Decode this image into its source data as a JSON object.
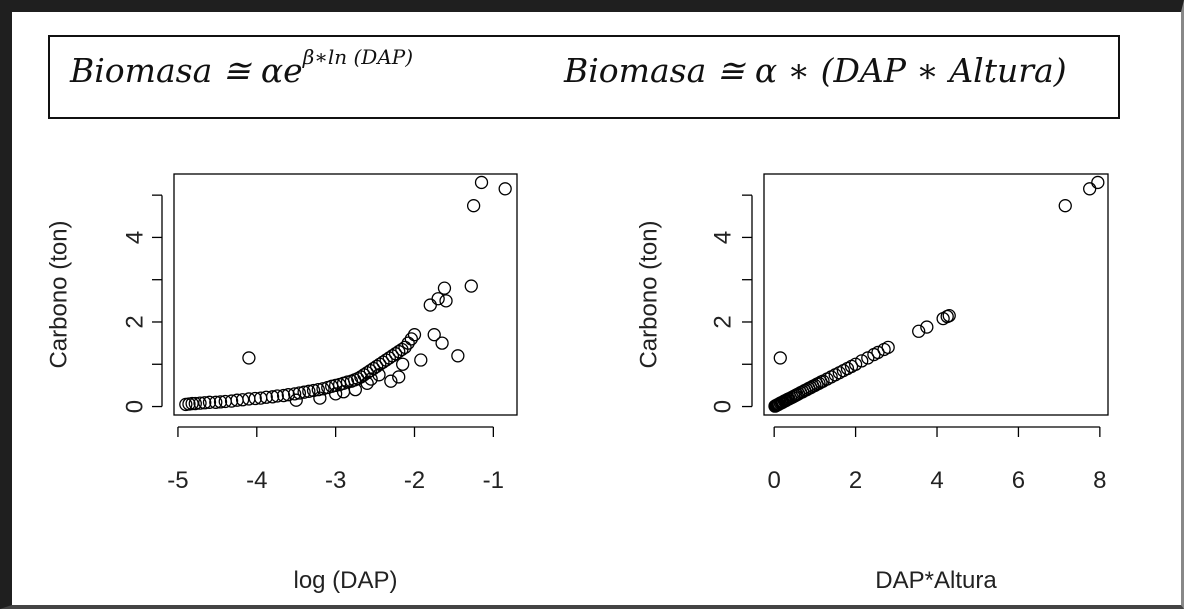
{
  "formulas": {
    "left": {
      "lhs": "Biomasa ≅ αe",
      "exponent": "β∗ln (DAP)"
    },
    "right": "Biomasa ≅ α ∗ (DAP ∗ Altura)"
  },
  "chart_data": [
    {
      "type": "scatter",
      "xlabel": "log (DAP)",
      "ylabel": "Carbono (ton)",
      "xlim": [
        -5.05,
        -0.7
      ],
      "ylim": [
        -0.2,
        5.5
      ],
      "xticks": [
        -5,
        -4,
        -3,
        -2,
        -1
      ],
      "xtick_labels": [
        "-5",
        "-4",
        "-3",
        "-2",
        "-1"
      ],
      "yticks": [
        0,
        2,
        4
      ],
      "ytick_labels": [
        "0",
        "2",
        "4"
      ],
      "grid": false,
      "x": [
        -4.9,
        -4.86,
        -4.82,
        -4.78,
        -4.72,
        -4.66,
        -4.6,
        -4.52,
        -4.46,
        -4.4,
        -4.32,
        -4.25,
        -4.18,
        -4.1,
        -4.02,
        -3.95,
        -3.88,
        -3.8,
        -3.74,
        -3.66,
        -3.6,
        -3.52,
        -3.46,
        -3.4,
        -3.34,
        -3.28,
        -3.22,
        -3.16,
        -3.1,
        -3.05,
        -3.0,
        -2.95,
        -2.9,
        -2.85,
        -2.8,
        -2.76,
        -2.72,
        -2.68,
        -2.64,
        -2.6,
        -2.56,
        -2.52,
        -2.48,
        -2.44,
        -2.4,
        -2.36,
        -2.32,
        -2.28,
        -2.24,
        -2.2,
        -2.16,
        -2.12,
        -2.08,
        -2.04,
        -2.0,
        -3.5,
        -3.2,
        -3.0,
        -2.9,
        -2.75,
        -2.6,
        -2.55,
        -2.45,
        -2.3,
        -2.2,
        -2.15,
        -4.1,
        -1.92,
        -1.8,
        -1.75,
        -1.7,
        -1.65,
        -1.62,
        -1.6,
        -1.45,
        -1.28,
        -1.25,
        -1.15,
        -0.85
      ],
      "y": [
        0.05,
        0.06,
        0.07,
        0.07,
        0.08,
        0.09,
        0.1,
        0.1,
        0.11,
        0.12,
        0.13,
        0.15,
        0.16,
        0.18,
        0.19,
        0.2,
        0.22,
        0.23,
        0.25,
        0.26,
        0.28,
        0.3,
        0.32,
        0.34,
        0.36,
        0.38,
        0.4,
        0.42,
        0.45,
        0.48,
        0.5,
        0.52,
        0.55,
        0.58,
        0.6,
        0.63,
        0.66,
        0.7,
        0.75,
        0.8,
        0.85,
        0.9,
        0.95,
        1.0,
        1.05,
        1.1,
        1.15,
        1.2,
        1.25,
        1.3,
        1.35,
        1.4,
        1.5,
        1.6,
        1.7,
        0.15,
        0.2,
        0.3,
        0.35,
        0.4,
        0.55,
        0.65,
        0.75,
        0.6,
        0.7,
        1.0,
        1.15,
        1.1,
        2.4,
        1.7,
        2.55,
        1.5,
        2.8,
        2.5,
        1.2,
        2.85,
        4.75,
        5.3,
        5.15
      ]
    },
    {
      "type": "scatter",
      "xlabel": "DAP*Altura",
      "ylabel": "Carbono (ton)",
      "xlim": [
        -0.25,
        8.2
      ],
      "ylim": [
        -0.2,
        5.5
      ],
      "xticks": [
        0,
        2,
        4,
        6,
        8
      ],
      "xtick_labels": [
        "0",
        "2",
        "4",
        "6",
        "8"
      ],
      "yticks": [
        0,
        2,
        4
      ],
      "ytick_labels": [
        "0",
        "2",
        "4"
      ],
      "grid": false,
      "x": [
        0.02,
        0.04,
        0.06,
        0.08,
        0.1,
        0.12,
        0.15,
        0.18,
        0.2,
        0.22,
        0.25,
        0.28,
        0.3,
        0.33,
        0.36,
        0.4,
        0.44,
        0.48,
        0.52,
        0.56,
        0.6,
        0.65,
        0.7,
        0.75,
        0.8,
        0.85,
        0.9,
        0.95,
        1.0,
        1.05,
        1.1,
        1.15,
        1.2,
        1.3,
        1.4,
        1.5,
        1.6,
        1.7,
        1.8,
        1.9,
        2.0,
        2.15,
        2.3,
        2.45,
        2.55,
        2.7,
        2.8,
        3.55,
        3.75,
        4.15,
        4.25,
        4.3,
        0.15,
        7.15,
        7.75,
        7.95
      ],
      "y": [
        0.01,
        0.02,
        0.03,
        0.04,
        0.05,
        0.06,
        0.08,
        0.09,
        0.1,
        0.11,
        0.13,
        0.14,
        0.15,
        0.17,
        0.18,
        0.2,
        0.22,
        0.24,
        0.26,
        0.28,
        0.3,
        0.33,
        0.35,
        0.38,
        0.4,
        0.43,
        0.45,
        0.48,
        0.5,
        0.53,
        0.55,
        0.58,
        0.6,
        0.65,
        0.7,
        0.75,
        0.8,
        0.85,
        0.9,
        0.95,
        1.0,
        1.08,
        1.15,
        1.23,
        1.28,
        1.35,
        1.4,
        1.78,
        1.88,
        2.08,
        2.13,
        2.15,
        1.15,
        4.75,
        5.15,
        5.3
      ]
    }
  ]
}
